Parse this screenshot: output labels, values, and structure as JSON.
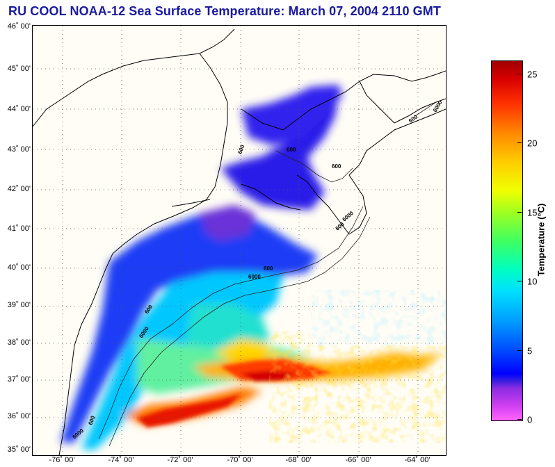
{
  "title": "RU COOL  NOAA-12  Sea Surface Temperature:  March 07, 2004 2110 GMT",
  "map": {
    "lat_labels": [
      "46˚ 00'",
      "45˚ 00'",
      "44˚ 00'",
      "43˚ 00'",
      "42˚ 00'",
      "41˚ 00'",
      "40˚ 00'",
      "39˚ 00'",
      "38˚ 00'",
      "37˚ 00'",
      "36˚ 00'",
      "35˚ 00'"
    ],
    "lon_labels": [
      "-76˚ 00'",
      "-74˚ 00'",
      "-72˚ 00'",
      "-70˚ 00'",
      "-68˚ 00'",
      "-66˚ 00'",
      "-64˚ 00'"
    ],
    "bathy_labels": [
      "600",
      "6000",
      "600",
      "6000",
      "600",
      "6000",
      "600",
      "600",
      "600",
      "600",
      "6000",
      "600",
      "6000"
    ],
    "land_color": "#fffdf5",
    "coast_color": "#000000",
    "grid_style": "dotted"
  },
  "colorbar": {
    "title": "Temperature (°C)",
    "ticks": [
      "0",
      "5",
      "10",
      "15",
      "20",
      "25"
    ],
    "min": 0,
    "max": 26
  }
}
